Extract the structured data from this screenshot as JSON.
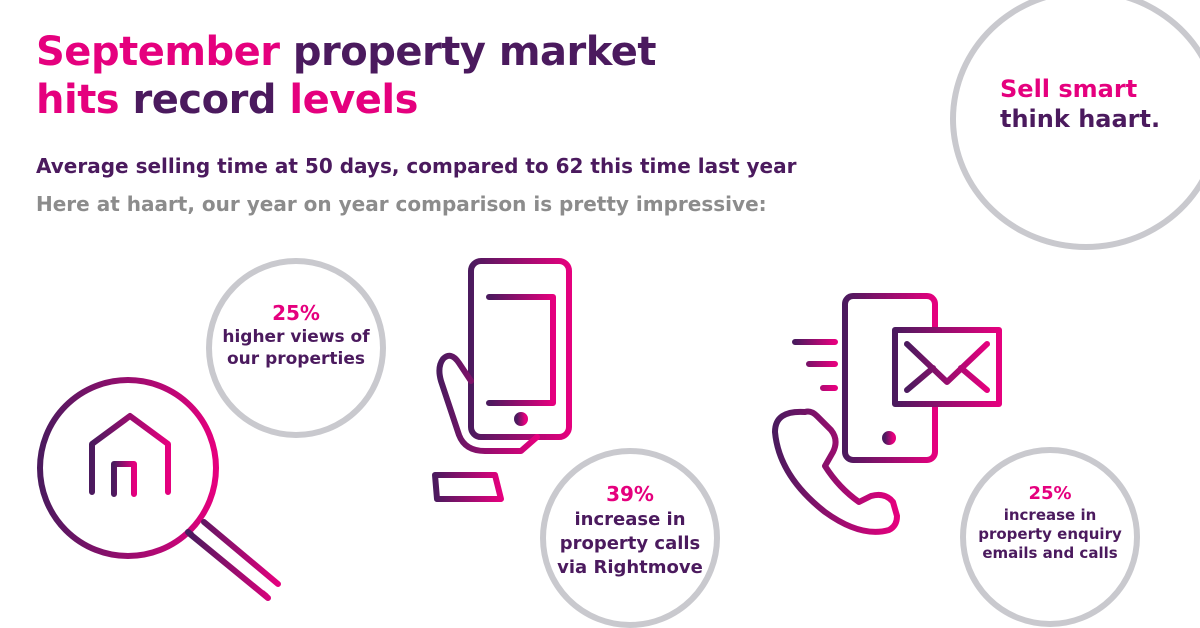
{
  "headline": {
    "word1": "September",
    "word2": " property market",
    "word3": "hits",
    "word4": " record ",
    "word5": "levels"
  },
  "subtitle": "Average selling time at 50 days, compared to 62 this time last year",
  "intro": "Here at haart, our year on year comparison is pretty impressive:",
  "slogan": {
    "line1": "Sell smart",
    "line2": "think haart."
  },
  "stats": [
    {
      "percent": "25%",
      "lines": [
        "higher views of",
        "our properties"
      ]
    },
    {
      "percent": "39%",
      "lines": [
        "increase in",
        "property calls",
        "via Rightmove"
      ]
    },
    {
      "percent": "25%",
      "lines": [
        "increase in",
        "property enquiry",
        "emails and calls"
      ]
    }
  ],
  "icons": [
    "magnifier-house-icon",
    "hand-phone-icon",
    "phone-envelope-icon"
  ],
  "colors": {
    "pink": "#e5007e",
    "purple": "#4b1a5e",
    "grey": "#8c8c8c",
    "ring": "#c9c9ce"
  }
}
